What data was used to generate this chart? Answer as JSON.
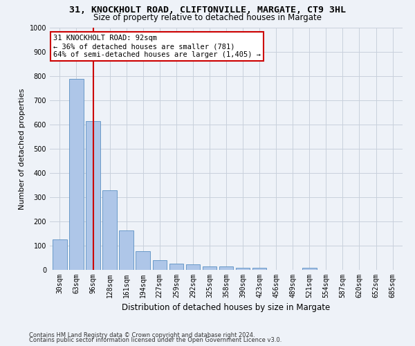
{
  "title1": "31, KNOCKHOLT ROAD, CLIFTONVILLE, MARGATE, CT9 3HL",
  "title2": "Size of property relative to detached houses in Margate",
  "xlabel": "Distribution of detached houses by size in Margate",
  "ylabel": "Number of detached properties",
  "footnote1": "Contains HM Land Registry data © Crown copyright and database right 2024.",
  "footnote2": "Contains public sector information licensed under the Open Government Licence v3.0.",
  "categories": [
    "30sqm",
    "63sqm",
    "96sqm",
    "128sqm",
    "161sqm",
    "194sqm",
    "227sqm",
    "259sqm",
    "292sqm",
    "325sqm",
    "358sqm",
    "390sqm",
    "423sqm",
    "456sqm",
    "489sqm",
    "521sqm",
    "554sqm",
    "587sqm",
    "620sqm",
    "652sqm",
    "685sqm"
  ],
  "values": [
    125,
    790,
    615,
    328,
    163,
    78,
    40,
    27,
    22,
    15,
    15,
    8,
    10,
    0,
    0,
    8,
    0,
    0,
    0,
    0,
    0
  ],
  "bar_color": "#aec6e8",
  "bar_edge_color": "#5a8fc2",
  "property_bin_index": 2,
  "vline_color": "#cc0000",
  "annotation_line1": "31 KNOCKHOLT ROAD: 92sqm",
  "annotation_line2": "← 36% of detached houses are smaller (781)",
  "annotation_line3": "64% of semi-detached houses are larger (1,405) →",
  "annotation_box_color": "#ffffff",
  "annotation_box_edge_color": "#cc0000",
  "ylim": [
    0,
    1000
  ],
  "yticks": [
    0,
    100,
    200,
    300,
    400,
    500,
    600,
    700,
    800,
    900,
    1000
  ],
  "grid_color": "#c8d0dc",
  "bg_color": "#eef2f8",
  "title_fontsize": 9.5,
  "subtitle_fontsize": 8.5,
  "ylabel_fontsize": 8,
  "xlabel_fontsize": 8.5,
  "tick_fontsize": 7,
  "footnote_fontsize": 6
}
